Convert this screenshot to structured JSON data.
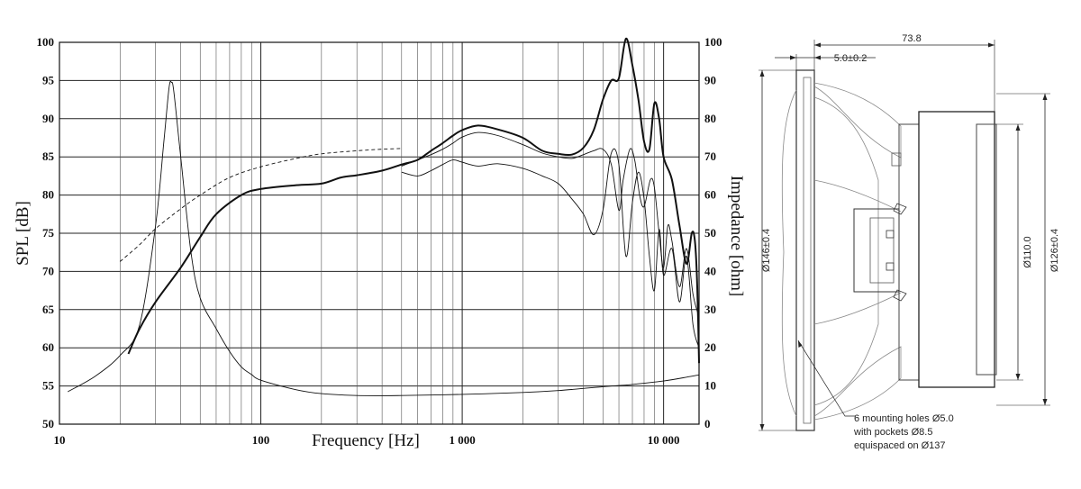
{
  "chart_data": {
    "type": "line",
    "x_axis": {
      "label": "Frequency [Hz]",
      "scale": "log",
      "range": [
        10,
        15000
      ],
      "tick_values": [
        10,
        100,
        1000,
        10000
      ],
      "tick_labels": [
        "10",
        "100",
        "1 000",
        "10 000"
      ]
    },
    "y_left": {
      "label": "SPL [dB]",
      "range": [
        50,
        100
      ],
      "ticks": [
        "50",
        "55",
        "60",
        "65",
        "70",
        "75",
        "80",
        "85",
        "90",
        "95",
        "100"
      ]
    },
    "y_right": {
      "label": "Impedance [ohm]",
      "range": [
        0,
        100
      ],
      "ticks": [
        "0",
        "10",
        "20",
        "30",
        "40",
        "50",
        "60",
        "70",
        "80",
        "90",
        "100"
      ]
    },
    "grid": true,
    "series": [
      {
        "id": "spl_on_axis",
        "axis": "left",
        "style": "thick",
        "points": [
          [
            22,
            59.2
          ],
          [
            25,
            62.5
          ],
          [
            30,
            66
          ],
          [
            40,
            70.5
          ],
          [
            50,
            74.5
          ],
          [
            60,
            77.5
          ],
          [
            80,
            80
          ],
          [
            100,
            80.8
          ],
          [
            150,
            81.3
          ],
          [
            200,
            81.5
          ],
          [
            250,
            82.3
          ],
          [
            300,
            82.6
          ],
          [
            400,
            83.2
          ],
          [
            500,
            84
          ],
          [
            600,
            84.6
          ],
          [
            700,
            85.8
          ],
          [
            800,
            86.8
          ],
          [
            900,
            87.8
          ],
          [
            1000,
            88.5
          ],
          [
            1200,
            89.1
          ],
          [
            1500,
            88.6
          ],
          [
            2000,
            87.5
          ],
          [
            2500,
            85.8
          ],
          [
            3000,
            85.4
          ],
          [
            3500,
            85.3
          ],
          [
            4000,
            86.2
          ],
          [
            4500,
            88.5
          ],
          [
            5000,
            92.5
          ],
          [
            5500,
            95
          ],
          [
            6000,
            95.3
          ],
          [
            6500,
            100.5
          ],
          [
            7000,
            97
          ],
          [
            7500,
            92.5
          ],
          [
            8000,
            87
          ],
          [
            8500,
            86
          ],
          [
            9000,
            92
          ],
          [
            9500,
            90
          ],
          [
            10000,
            85
          ],
          [
            11000,
            82
          ],
          [
            12000,
            76
          ],
          [
            13000,
            71
          ],
          [
            13800,
            75
          ],
          [
            14300,
            74
          ],
          [
            14700,
            68
          ],
          [
            15000,
            58
          ]
        ]
      },
      {
        "id": "spl_off_axis_1",
        "axis": "left",
        "style": "thin",
        "points": [
          [
            500,
            83.8
          ],
          [
            600,
            84.6
          ],
          [
            700,
            85.3
          ],
          [
            800,
            86
          ],
          [
            900,
            86.8
          ],
          [
            1000,
            87.6
          ],
          [
            1200,
            88.2
          ],
          [
            1500,
            87.8
          ],
          [
            2000,
            86.6
          ],
          [
            2500,
            85.5
          ],
          [
            3000,
            85
          ],
          [
            3500,
            84.8
          ],
          [
            4000,
            85.3
          ],
          [
            4500,
            85.8
          ],
          [
            5000,
            86
          ],
          [
            5500,
            84
          ],
          [
            6000,
            78
          ],
          [
            6300,
            82
          ],
          [
            6800,
            86
          ],
          [
            7200,
            84.5
          ],
          [
            7600,
            80
          ],
          [
            8000,
            78.5
          ],
          [
            8600,
            82
          ],
          [
            9000,
            81
          ],
          [
            9500,
            75
          ],
          [
            10000,
            70.5
          ],
          [
            10500,
            76
          ],
          [
            11000,
            74
          ],
          [
            12000,
            68
          ],
          [
            13000,
            73
          ],
          [
            14000,
            67
          ],
          [
            15000,
            64
          ]
        ]
      },
      {
        "id": "spl_off_axis_2",
        "axis": "left",
        "style": "thin",
        "points": [
          [
            500,
            83
          ],
          [
            600,
            82.5
          ],
          [
            700,
            83.2
          ],
          [
            800,
            84
          ],
          [
            900,
            84.6
          ],
          [
            1000,
            84.3
          ],
          [
            1200,
            83.8
          ],
          [
            1500,
            84.1
          ],
          [
            2000,
            83.5
          ],
          [
            2500,
            82.5
          ],
          [
            3000,
            81.5
          ],
          [
            3500,
            79.5
          ],
          [
            4000,
            77.5
          ],
          [
            4500,
            74.8
          ],
          [
            5000,
            78
          ],
          [
            5500,
            85.5
          ],
          [
            6000,
            84
          ],
          [
            6500,
            72
          ],
          [
            7000,
            79
          ],
          [
            7500,
            83
          ],
          [
            8000,
            79.5
          ],
          [
            8500,
            72
          ],
          [
            9000,
            67.5
          ],
          [
            9500,
            75.5
          ],
          [
            10000,
            69.5
          ],
          [
            11000,
            73
          ],
          [
            12000,
            66
          ],
          [
            13000,
            72
          ],
          [
            14000,
            63
          ],
          [
            15000,
            60
          ]
        ]
      },
      {
        "id": "spl_dashed",
        "axis": "left",
        "style": "dashed",
        "points": [
          [
            20,
            71.3
          ],
          [
            25,
            73.5
          ],
          [
            30,
            75.6
          ],
          [
            40,
            78.2
          ],
          [
            50,
            80
          ],
          [
            70,
            82.3
          ],
          [
            100,
            83.7
          ],
          [
            150,
            84.8
          ],
          [
            200,
            85.4
          ],
          [
            300,
            85.8
          ],
          [
            400,
            86
          ],
          [
            500,
            86.1
          ]
        ]
      },
      {
        "id": "impedance",
        "axis": "right",
        "style": "thin",
        "points": [
          [
            11,
            8.5
          ],
          [
            15,
            12.5
          ],
          [
            20,
            18
          ],
          [
            25,
            26
          ],
          [
            30,
            52
          ],
          [
            33,
            74
          ],
          [
            35,
            88
          ],
          [
            36,
            89.5
          ],
          [
            37,
            87
          ],
          [
            40,
            70
          ],
          [
            45,
            45
          ],
          [
            50,
            33
          ],
          [
            60,
            25
          ],
          [
            70,
            19
          ],
          [
            80,
            15
          ],
          [
            90,
            13
          ],
          [
            100,
            11.5
          ],
          [
            150,
            9
          ],
          [
            200,
            8
          ],
          [
            300,
            7.5
          ],
          [
            500,
            7.5
          ],
          [
            1000,
            7.8
          ],
          [
            2000,
            8.3
          ],
          [
            3000,
            8.8
          ],
          [
            5000,
            9.8
          ],
          [
            7000,
            10.4
          ],
          [
            10000,
            11.3
          ],
          [
            13000,
            12.3
          ],
          [
            15000,
            12.9
          ]
        ]
      }
    ]
  },
  "drawing": {
    "dim_overall_depth": "73.8",
    "dim_flange": "5.0±0.2",
    "dim_frame_diameter": "Ø146±0.4",
    "dim_magnet_diameter": "Ø110.0",
    "dim_cutout_diameter": "Ø126±0.4",
    "note_line1": "6 mounting holes Ø5.0",
    "note_line2": "with pockets Ø8.5",
    "note_line3": "equispaced on Ø137"
  }
}
